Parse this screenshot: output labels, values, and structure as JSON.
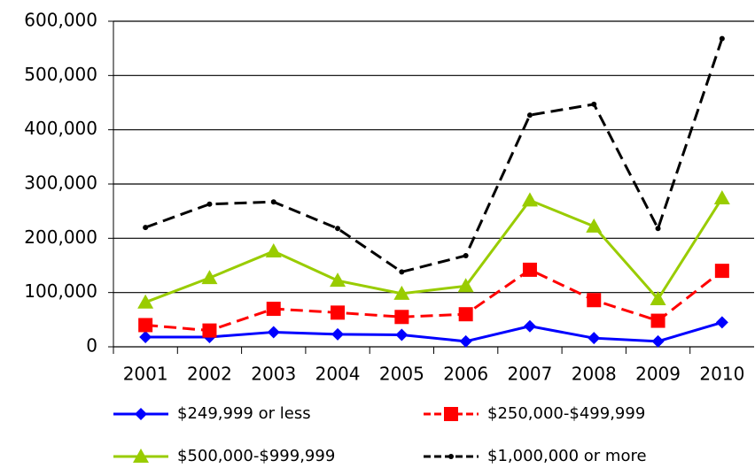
{
  "chart_data": {
    "type": "line",
    "categories": [
      "2001",
      "2002",
      "2003",
      "2004",
      "2005",
      "2006",
      "2007",
      "2008",
      "2009",
      "2010"
    ],
    "series": [
      {
        "name": "$249,999 or less",
        "color": "#0000ff",
        "marker": "diamond",
        "dashed": false,
        "values": [
          18000,
          18000,
          27000,
          23000,
          22000,
          10000,
          38000,
          16000,
          10000,
          45000
        ]
      },
      {
        "name": "$250,000-$499,999",
        "color": "#ff0000",
        "marker": "square",
        "dashed": true,
        "values": [
          40000,
          30000,
          70000,
          63000,
          55000,
          60000,
          142000,
          86000,
          48000,
          140000
        ]
      },
      {
        "name": "$500,000-$999,999",
        "color": "#99cc00",
        "marker": "triangle",
        "dashed": false,
        "values": [
          82000,
          127000,
          176000,
          122000,
          98000,
          112000,
          270000,
          222000,
          88000,
          274000
        ]
      },
      {
        "name": "$1,000,000 or more",
        "color": "#000000",
        "marker": "dot",
        "dashed": true,
        "values": [
          220000,
          263000,
          267000,
          218000,
          138000,
          168000,
          427000,
          447000,
          218000,
          568000
        ]
      }
    ],
    "ylim": [
      0,
      600000
    ],
    "yticks": [
      0,
      {
        "value": 100000,
        "label": "100,000"
      },
      {
        "value": 200000,
        "label": "200,000"
      },
      {
        "value": 300000,
        "label": "300,000"
      },
      {
        "value": 400000,
        "label": "400,000"
      },
      {
        "value": 500000,
        "label": "500,000"
      },
      {
        "value": 600000,
        "label": "600,000"
      }
    ],
    "grid": true
  }
}
